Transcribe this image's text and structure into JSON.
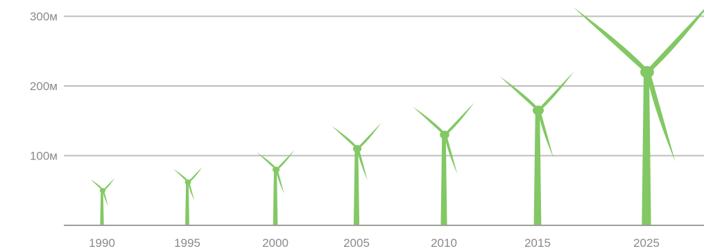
{
  "chart_data": {
    "type": "bar",
    "title": "",
    "xlabel": "",
    "ylabel": "",
    "categories": [
      "1990",
      "1995",
      "2000",
      "2005",
      "2010",
      "2015",
      "2025"
    ],
    "values": [
      50,
      62,
      80,
      110,
      130,
      165,
      220
    ],
    "rotor_tip_heights": [
      74,
      91,
      118,
      160,
      192,
      240,
      362
    ],
    "ylim": [
      0,
      300
    ],
    "yticks": [
      {
        "value": 100,
        "label": "100м"
      },
      {
        "value": 200,
        "label": "200м"
      },
      {
        "value": 300,
        "label": "300м"
      }
    ],
    "grid": true,
    "legend": "none",
    "colors": {
      "turbine": "#82c864",
      "grid": "#bdbdbd",
      "axis": "#9e9e9e",
      "label": "#8a8a8a"
    }
  }
}
